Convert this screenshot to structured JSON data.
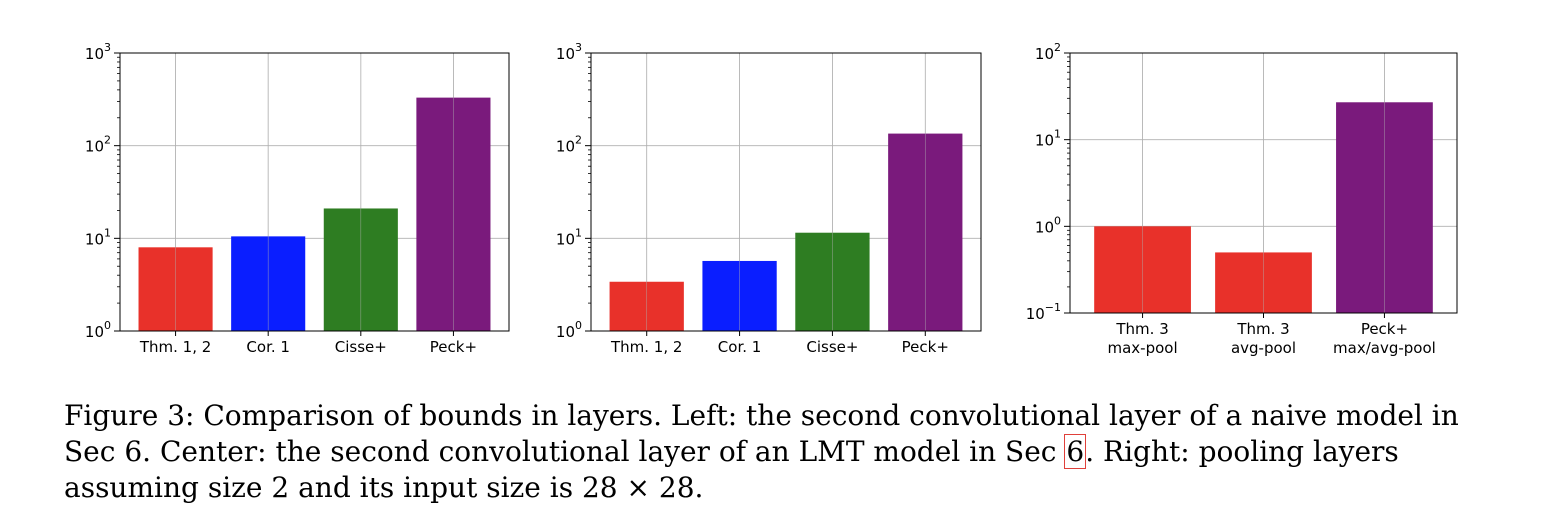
{
  "chart_data": [
    {
      "type": "bar",
      "yscale": "log",
      "ylim": [
        1,
        1000
      ],
      "categories": [
        "Thm. 1, 2",
        "Cor. 1",
        "Cisse+",
        "Peck+"
      ],
      "values": [
        8,
        10.5,
        21,
        330
      ],
      "colors": [
        "#e8312a",
        "#0a1eff",
        "#2e7d22",
        "#7a1a7c"
      ],
      "ytick_labels": [
        {
          "base": "10",
          "exp": "0"
        },
        {
          "base": "10",
          "exp": "1"
        },
        {
          "base": "10",
          "exp": "2"
        },
        {
          "base": "10",
          "exp": "3"
        }
      ],
      "grid": true
    },
    {
      "type": "bar",
      "yscale": "log",
      "ylim": [
        1,
        1000
      ],
      "categories": [
        "Thm. 1, 2",
        "Cor. 1",
        "Cisse+",
        "Peck+"
      ],
      "values": [
        3.4,
        5.7,
        11.5,
        135
      ],
      "colors": [
        "#e8312a",
        "#0a1eff",
        "#2e7d22",
        "#7a1a7c"
      ],
      "ytick_labels": [
        {
          "base": "10",
          "exp": "0"
        },
        {
          "base": "10",
          "exp": "1"
        },
        {
          "base": "10",
          "exp": "2"
        },
        {
          "base": "10",
          "exp": "3"
        }
      ],
      "grid": true
    },
    {
      "type": "bar",
      "yscale": "log",
      "ylim": [
        0.1,
        100
      ],
      "categories": [
        [
          "Thm. 3",
          "max-pool"
        ],
        [
          "Thm. 3",
          "avg-pool"
        ],
        [
          "Peck+",
          "max/avg-pool"
        ]
      ],
      "values": [
        1.0,
        0.5,
        27
      ],
      "colors": [
        "#e8312a",
        "#e8312a",
        "#7a1a7c"
      ],
      "ytick_labels": [
        {
          "base": "10",
          "exp": "−1"
        },
        {
          "base": "10",
          "exp": "0"
        },
        {
          "base": "10",
          "exp": "1"
        },
        {
          "base": "10",
          "exp": "2"
        }
      ],
      "grid": true
    }
  ],
  "caption": {
    "text_before_ref": "Figure 3:  Comparison of bounds in layers. Left: the second convolutional layer of a naive model in Sec 6. Center: the second convolutional layer of an LMT model in Sec ",
    "ref": "6",
    "text_after_ref": ". Right: pooling layers assuming size 2 and its input size is 28 × 28."
  }
}
